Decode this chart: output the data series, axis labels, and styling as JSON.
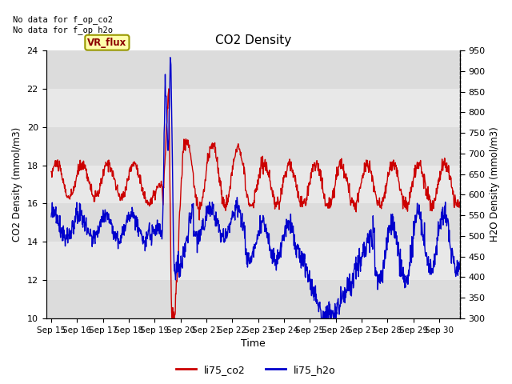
{
  "title": "CO2 Density",
  "xlabel": "Time",
  "ylabel_left": "CO2 Density (mmol/m3)",
  "ylabel_right": "H2O Density (mmol/m3)",
  "ylim_left": [
    10,
    24
  ],
  "ylim_right": [
    300,
    950
  ],
  "yticks_left": [
    10,
    12,
    14,
    16,
    18,
    20,
    22,
    24
  ],
  "yticks_right": [
    300,
    350,
    400,
    450,
    500,
    550,
    600,
    650,
    700,
    750,
    800,
    850,
    900,
    950
  ],
  "xtick_labels": [
    "Sep 15",
    "Sep 16",
    "Sep 17",
    "Sep 18",
    "Sep 19",
    "Sep 20",
    "Sep 21",
    "Sep 22",
    "Sep 23",
    "Sep 24",
    "Sep 25",
    "Sep 26",
    "Sep 27",
    "Sep 28",
    "Sep 29",
    "Sep 30"
  ],
  "fig_bg_color": "#ffffff",
  "plot_bg_color": "#e8e8e8",
  "co2_color": "#cc0000",
  "h2o_color": "#0000cc",
  "text_annotation": "No data for f_op_co2\nNo data for f_op_h2o",
  "vr_flux_label": "VR_flux",
  "legend_labels": [
    "li75_co2",
    "li75_h2o"
  ],
  "linewidth": 1.0
}
